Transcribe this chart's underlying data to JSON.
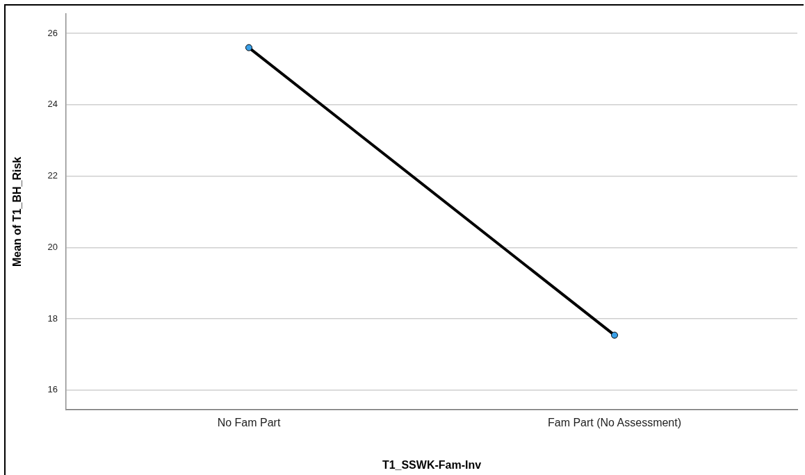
{
  "chart_data": {
    "type": "line",
    "xlabel": "T1_SSWK-Fam-Inv",
    "ylabel": "Mean of T1_BH_Risk",
    "categories": [
      "No Fam Part",
      "Fam Part (No Assessment)"
    ],
    "series": [
      {
        "color": "#000000",
        "values": [
          25.6,
          17.54
        ]
      }
    ],
    "ylim": [
      15.45,
      26.55
    ],
    "yticks": [
      16,
      18,
      20,
      22,
      24,
      26
    ],
    "grid": "y",
    "legend": false,
    "marker": "circle",
    "line_style": "solid"
  }
}
